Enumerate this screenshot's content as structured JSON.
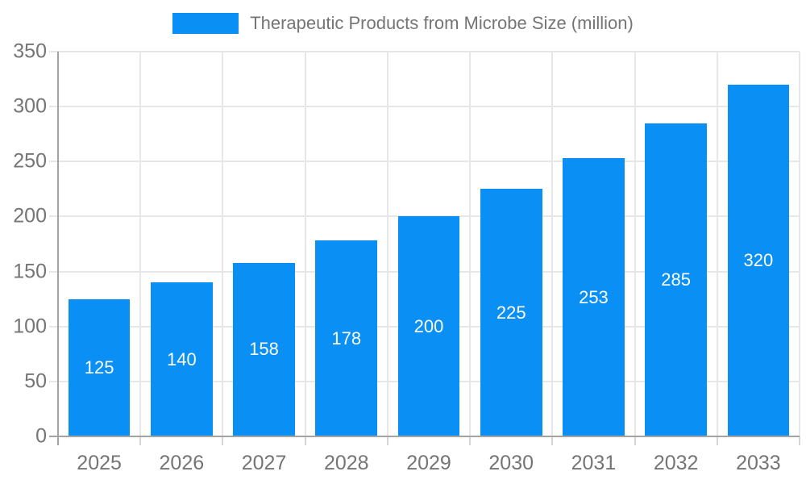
{
  "chart_data": {
    "type": "bar",
    "title": "Therapeutic Products from Microbe Size (million)",
    "categories": [
      "2025",
      "2026",
      "2027",
      "2028",
      "2029",
      "2030",
      "2031",
      "2032",
      "2033"
    ],
    "values": [
      125,
      140,
      158,
      178,
      200,
      225,
      253,
      285,
      320
    ],
    "xlabel": "",
    "ylabel": "",
    "ylim": [
      0,
      350
    ],
    "ytick_step": 50,
    "ytick_labels": [
      "0",
      "50",
      "100",
      "150",
      "200",
      "250",
      "300",
      "350"
    ],
    "grid": "on",
    "legend_position": "top-center",
    "bar_label_position": "center",
    "colors": {
      "bar": "#0a8ff5",
      "bar_value_text": "#ffffff",
      "axis_line": "#a3a3a3",
      "gridline": "#e7e7e7",
      "tick_mark": "#d6d6d6",
      "tick_text": "#757575",
      "legend_text": "#757575",
      "background": "#ffffff"
    }
  }
}
